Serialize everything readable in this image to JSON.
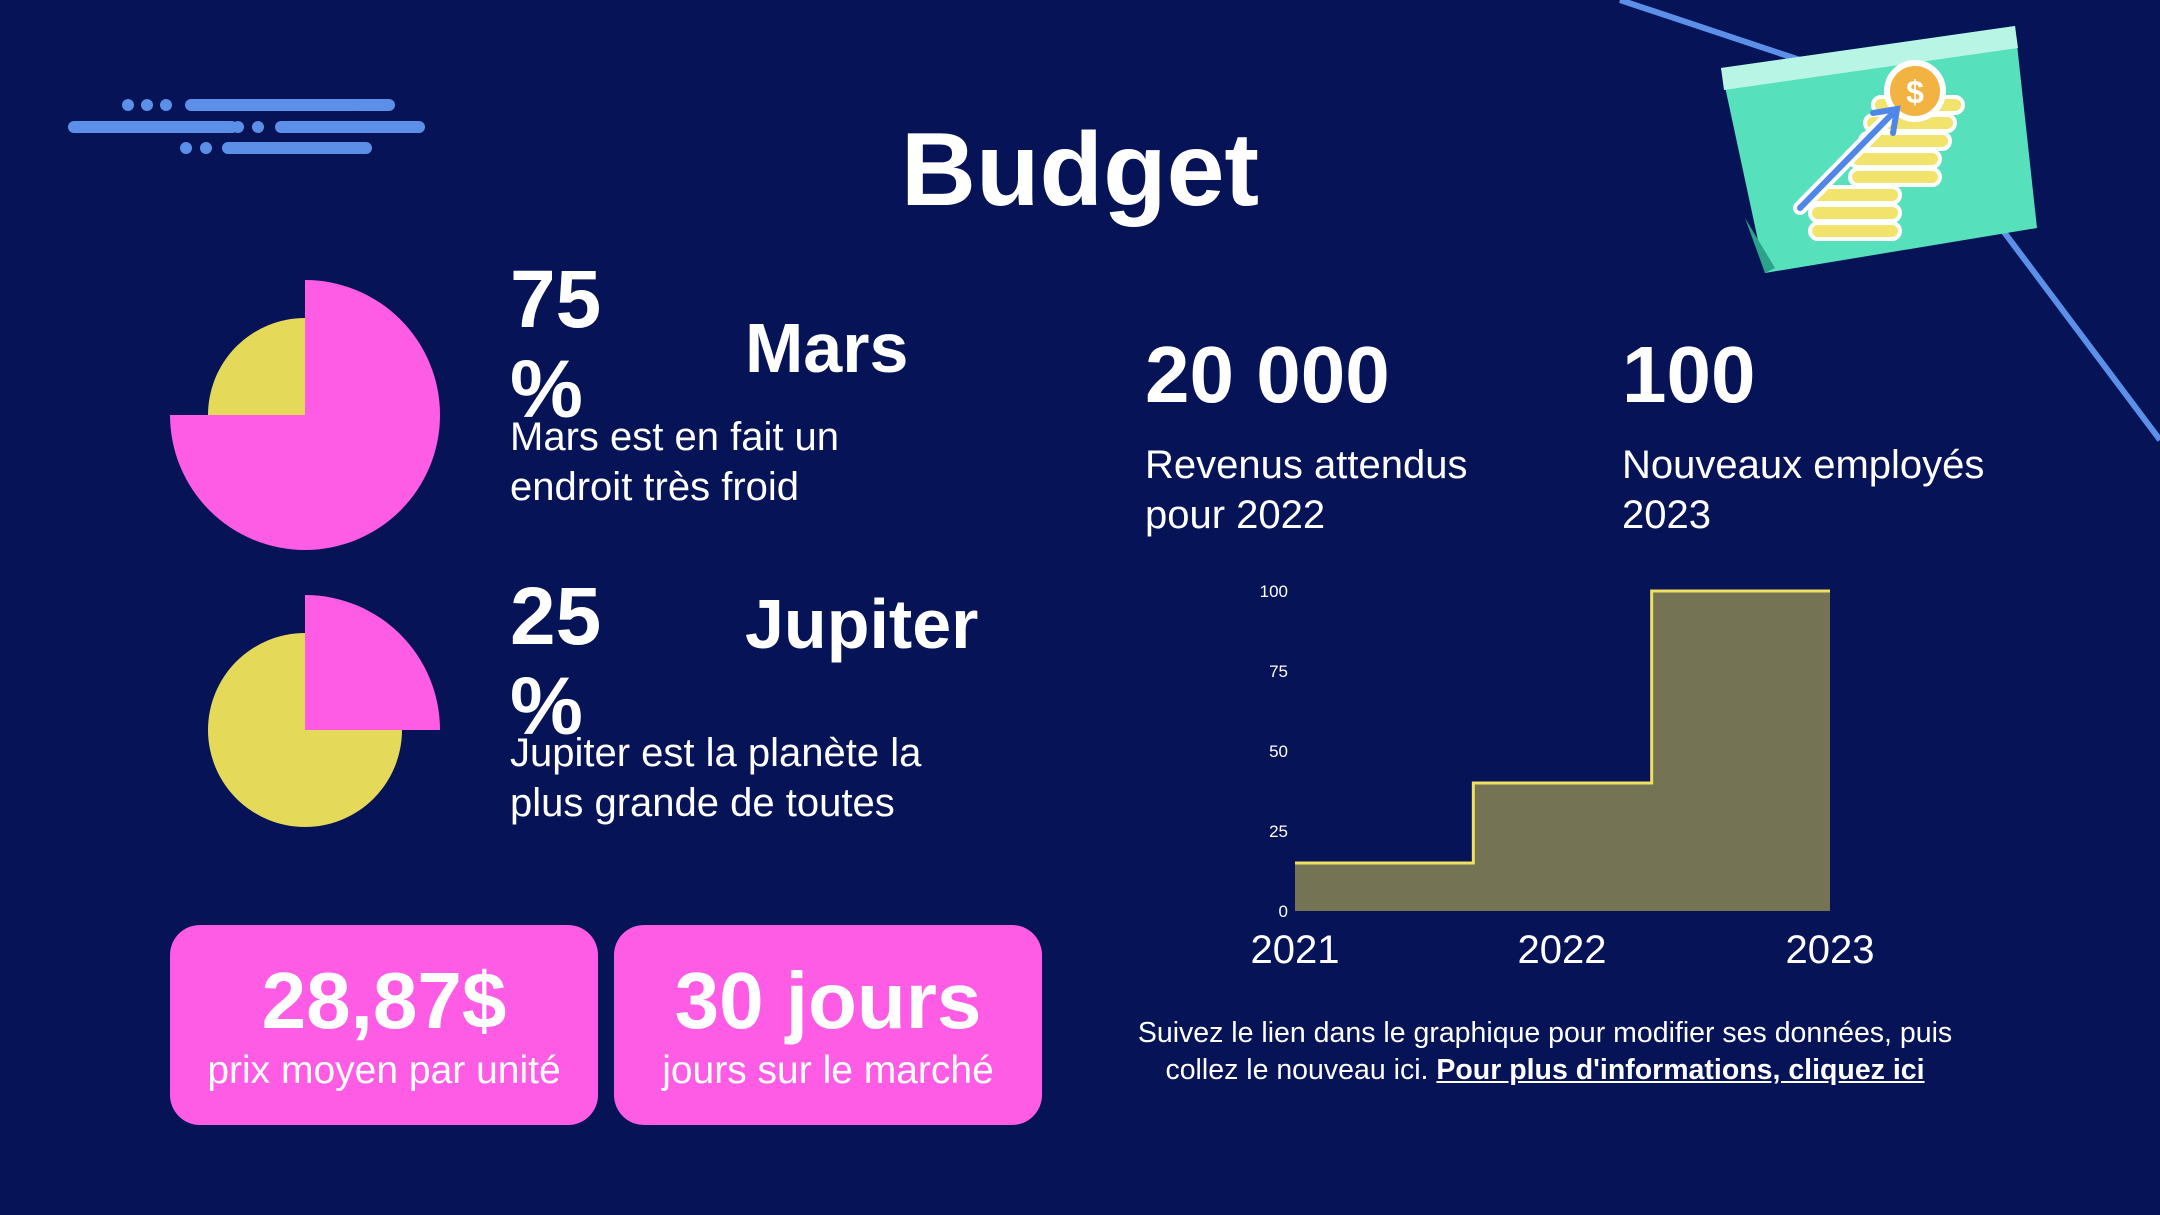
{
  "title": "Budget",
  "planets": [
    {
      "percent_label": "75 %",
      "name": "Mars",
      "description": "Mars est en fait un endroit très froid",
      "share": 0.75
    },
    {
      "percent_label": "25 %",
      "name": "Jupiter",
      "description": "Jupiter est la planète la plus grande de toutes",
      "share": 0.25
    }
  ],
  "stats": [
    {
      "value": "20 000",
      "label": "Revenus attendus pour 2022"
    },
    {
      "value": "100",
      "label": "Nouveaux employés 2023"
    }
  ],
  "pills": [
    {
      "value": "28,87$",
      "label": "prix moyen par unité"
    },
    {
      "value": "30 jours",
      "label": "jours sur le marché"
    }
  ],
  "note": {
    "text": "Suivez le lien dans le graphique pour modifier ses données, puis collez le nouveau ici.",
    "link": "Pour plus d'informations, cliquez ici"
  },
  "colors": {
    "background": "#061357",
    "pink": "#ff5ce6",
    "yellow": "#e5d95a",
    "area_fill": "#747353",
    "area_line": "#f0e060",
    "accent_blue": "#5b8fe8"
  },
  "chart_data": [
    {
      "type": "pie",
      "series": [
        {
          "values": [
            75,
            25
          ]
        }
      ],
      "colors": [
        "#ff5ce6",
        "#e5d95a"
      ]
    },
    {
      "type": "pie",
      "series": [
        {
          "values": [
            25,
            75
          ]
        }
      ],
      "colors": [
        "#ff5ce6",
        "#e5d95a"
      ]
    },
    {
      "type": "area",
      "categories": [
        "2021",
        "2022",
        "2023"
      ],
      "values": [
        15,
        40,
        100
      ],
      "yticks": [
        0,
        25,
        50,
        75,
        100
      ],
      "ylim": [
        0,
        100
      ],
      "grid": false,
      "title": "",
      "xlabel": "",
      "ylabel": ""
    }
  ]
}
